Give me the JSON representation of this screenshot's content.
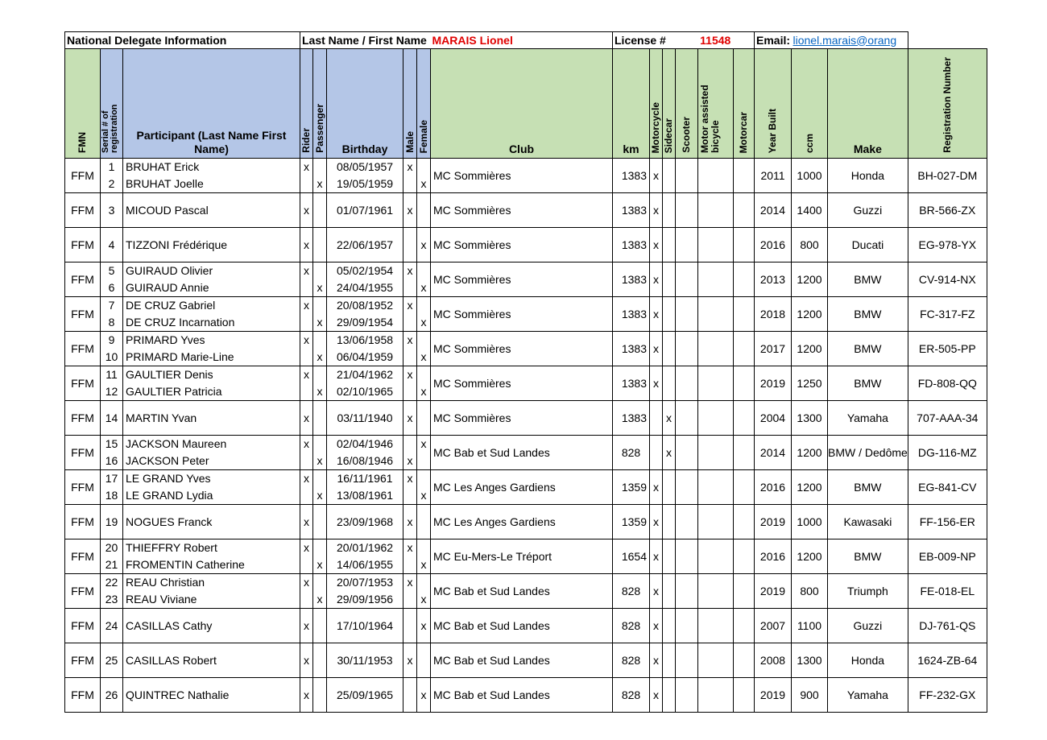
{
  "info": {
    "delegate_label": "National Delegate Information",
    "name_label": "Last Name / First Name",
    "name_value": "MARAIS Lionel",
    "license_label": "License #",
    "license_value": "11548",
    "email_label": "Email:",
    "email_value": "lionel.marais@orang"
  },
  "headers": {
    "fmn": "FMN",
    "serial": "Serial # of registration",
    "participant": "Participant (Last Name First Name)",
    "rider": "Rider",
    "passenger": "Passenger",
    "birthday": "Birthday",
    "male": "Male",
    "female": "Female",
    "club": "Club",
    "km": "km",
    "motorcycle": "Motorcycle",
    "sidecar": "Sidecar",
    "scooter": "Scooter",
    "motor_assisted": "Motor assisted bicycle",
    "motorcar": "Motorcar",
    "year_built": "Year Built",
    "ccm": "ccm",
    "make": "Make",
    "registration": "Registration Number"
  },
  "rows": [
    {
      "fmn": "FFM",
      "people": [
        {
          "serial": "1",
          "name": "BRUHAT Erick",
          "rider": "x",
          "passenger": "",
          "birthday": "08/05/1957",
          "male": "x",
          "female": ""
        },
        {
          "serial": "2",
          "name": "BRUHAT Joelle",
          "rider": "",
          "passenger": "x",
          "birthday": "19/05/1959",
          "male": "",
          "female": "x"
        }
      ],
      "club": "MC Sommières",
      "km": "1383",
      "motorcycle": "x",
      "sidecar": "",
      "year": "2011",
      "ccm": "1000",
      "make": "Honda",
      "reg": "BH-027-DM"
    },
    {
      "fmn": "FFM",
      "people": [
        {
          "serial": "3",
          "name": "MICOUD Pascal",
          "rider": "x",
          "passenger": "",
          "birthday": "01/07/1961",
          "male": "x",
          "female": ""
        }
      ],
      "club": "MC Sommières",
      "km": "1383",
      "motorcycle": "x",
      "sidecar": "",
      "year": "2014",
      "ccm": "1400",
      "make": "Guzzi",
      "reg": "BR-566-ZX"
    },
    {
      "fmn": "FFM",
      "people": [
        {
          "serial": "4",
          "name": "TIZZONI Frédérique",
          "rider": "x",
          "passenger": "",
          "birthday": "22/06/1957",
          "male": "",
          "female": "x"
        }
      ],
      "club": "MC Sommières",
      "km": "1383",
      "motorcycle": "x",
      "sidecar": "",
      "year": "2016",
      "ccm": "800",
      "make": "Ducati",
      "reg": "EG-978-YX"
    },
    {
      "fmn": "FFM",
      "people": [
        {
          "serial": "5",
          "name": "GUIRAUD Olivier",
          "rider": "x",
          "passenger": "",
          "birthday": "05/02/1954",
          "male": "x",
          "female": ""
        },
        {
          "serial": "6",
          "name": "GUIRAUD Annie",
          "rider": "",
          "passenger": "x",
          "birthday": "24/04/1955",
          "male": "",
          "female": "x"
        }
      ],
      "club": "MC Sommières",
      "km": "1383",
      "motorcycle": "x",
      "sidecar": "",
      "year": "2013",
      "ccm": "1200",
      "make": "BMW",
      "reg": "CV-914-NX"
    },
    {
      "fmn": "FFM",
      "people": [
        {
          "serial": "7",
          "name": "DE CRUZ Gabriel",
          "rider": "x",
          "passenger": "",
          "birthday": "20/08/1952",
          "male": "x",
          "female": ""
        },
        {
          "serial": "8",
          "name": "DE CRUZ Incarnation",
          "rider": "",
          "passenger": "x",
          "birthday": "29/09/1954",
          "male": "",
          "female": "x"
        }
      ],
      "club": "MC Sommières",
      "km": "1383",
      "motorcycle": "x",
      "sidecar": "",
      "year": "2018",
      "ccm": "1200",
      "make": "BMW",
      "reg": "FC-317-FZ"
    },
    {
      "fmn": "FFM",
      "people": [
        {
          "serial": "9",
          "name": "PRIMARD Yves",
          "rider": "x",
          "passenger": "",
          "birthday": "13/06/1958",
          "male": "x",
          "female": ""
        },
        {
          "serial": "10",
          "name": "PRIMARD Marie-Line",
          "rider": "",
          "passenger": "x",
          "birthday": "06/04/1959",
          "male": "",
          "female": "x"
        }
      ],
      "club": "MC Sommières",
      "km": "1383",
      "motorcycle": "x",
      "sidecar": "",
      "year": "2017",
      "ccm": "1200",
      "make": "BMW",
      "reg": "ER-505-PP"
    },
    {
      "fmn": "FFM",
      "people": [
        {
          "serial": "11",
          "name": "GAULTIER Denis",
          "rider": "x",
          "passenger": "",
          "birthday": "21/04/1962",
          "male": "x",
          "female": ""
        },
        {
          "serial": "12",
          "name": "GAULTIER Patricia",
          "rider": "",
          "passenger": "x",
          "birthday": "02/10/1965",
          "male": "",
          "female": "x"
        }
      ],
      "club": "MC Sommières",
      "km": "1383",
      "motorcycle": "x",
      "sidecar": "",
      "year": "2019",
      "ccm": "1250",
      "make": "BMW",
      "reg": "FD-808-QQ"
    },
    {
      "fmn": "FFM",
      "people": [
        {
          "serial": "14",
          "name": "MARTIN Yvan",
          "rider": "x",
          "passenger": "",
          "birthday": "03/11/1940",
          "male": "x",
          "female": ""
        }
      ],
      "club": "MC Sommières",
      "km": "1383",
      "motorcycle": "",
      "sidecar": "x",
      "year": "2004",
      "ccm": "1300",
      "make": "Yamaha",
      "reg": "707-AAA-34"
    },
    {
      "fmn": "FFM",
      "people": [
        {
          "serial": "15",
          "name": "JACKSON Maureen",
          "rider": "x",
          "passenger": "",
          "birthday": "02/04/1946",
          "male": "",
          "female": "x"
        },
        {
          "serial": "16",
          "name": "JACKSON Peter",
          "rider": "",
          "passenger": "x",
          "birthday": "16/08/1946",
          "male": "x",
          "female": ""
        }
      ],
      "club": "MC Bab et Sud Landes",
      "km": "828",
      "motorcycle": "",
      "sidecar": "x",
      "year": "2014",
      "ccm": "1200",
      "make": "BMW / Dedôme",
      "reg": "DG-116-MZ"
    },
    {
      "fmn": "FFM",
      "people": [
        {
          "serial": "17",
          "name": "LE GRAND Yves",
          "rider": "x",
          "passenger": "",
          "birthday": "16/11/1961",
          "male": "x",
          "female": ""
        },
        {
          "serial": "18",
          "name": "LE GRAND Lydia",
          "rider": "",
          "passenger": "x",
          "birthday": "13/08/1961",
          "male": "",
          "female": "x"
        }
      ],
      "club": "MC Les Anges Gardiens",
      "km": "1359",
      "motorcycle": "x",
      "sidecar": "",
      "year": "2016",
      "ccm": "1200",
      "make": "BMW",
      "reg": "EG-841-CV"
    },
    {
      "fmn": "FFM",
      "people": [
        {
          "serial": "19",
          "name": "NOGUES Franck",
          "rider": "x",
          "passenger": "",
          "birthday": "23/09/1968",
          "male": "x",
          "female": ""
        }
      ],
      "club": "MC Les Anges Gardiens",
      "km": "1359",
      "motorcycle": "x",
      "sidecar": "",
      "year": "2019",
      "ccm": "1000",
      "make": "Kawasaki",
      "reg": "FF-156-ER"
    },
    {
      "fmn": "FFM",
      "people": [
        {
          "serial": "20",
          "name": "THIEFFRY Robert",
          "rider": "x",
          "passenger": "",
          "birthday": "20/01/1962",
          "male": "x",
          "female": ""
        },
        {
          "serial": "21",
          "name": "FROMENTIN Catherine",
          "rider": "",
          "passenger": "x",
          "birthday": "14/06/1955",
          "male": "",
          "female": "x"
        }
      ],
      "club": "MC Eu-Mers-Le Tréport",
      "km": "1654",
      "motorcycle": "x",
      "sidecar": "",
      "year": "2016",
      "ccm": "1200",
      "make": "BMW",
      "reg": "EB-009-NP"
    },
    {
      "fmn": "FFM",
      "people": [
        {
          "serial": "22",
          "name": "REAU Christian",
          "rider": "x",
          "passenger": "",
          "birthday": "20/07/1953",
          "male": "x",
          "female": ""
        },
        {
          "serial": "23",
          "name": "REAU Viviane",
          "rider": "",
          "passenger": "x",
          "birthday": "29/09/1956",
          "male": "",
          "female": "x"
        }
      ],
      "club": "MC Bab et Sud Landes",
      "km": "828",
      "motorcycle": "x",
      "sidecar": "",
      "year": "2019",
      "ccm": "800",
      "make": "Triumph",
      "reg": "FE-018-EL"
    },
    {
      "fmn": "FFM",
      "people": [
        {
          "serial": "24",
          "name": "CASILLAS Cathy",
          "rider": "x",
          "passenger": "",
          "birthday": "17/10/1964",
          "male": "",
          "female": "x"
        }
      ],
      "club": "MC Bab et Sud Landes",
      "km": "828",
      "motorcycle": "x",
      "sidecar": "",
      "year": "2007",
      "ccm": "1100",
      "make": "Guzzi",
      "reg": "DJ-761-QS"
    },
    {
      "fmn": "FFM",
      "people": [
        {
          "serial": "25",
          "name": "CASILLAS Robert",
          "rider": "x",
          "passenger": "",
          "birthday": "30/11/1953",
          "male": "x",
          "female": ""
        }
      ],
      "club": "MC Bab et Sud Landes",
      "km": "828",
      "motorcycle": "x",
      "sidecar": "",
      "year": "2008",
      "ccm": "1300",
      "make": "Honda",
      "reg": "1624-ZB-64"
    },
    {
      "fmn": "FFM",
      "people": [
        {
          "serial": "26",
          "name": "QUINTREC Nathalie",
          "rider": "x",
          "passenger": "",
          "birthday": "25/09/1965",
          "male": "",
          "female": "x"
        }
      ],
      "club": "MC Bab et Sud Landes",
      "km": "828",
      "motorcycle": "x",
      "sidecar": "",
      "year": "2019",
      "ccm": "900",
      "make": "Yamaha",
      "reg": "FF-232-GX"
    }
  ]
}
